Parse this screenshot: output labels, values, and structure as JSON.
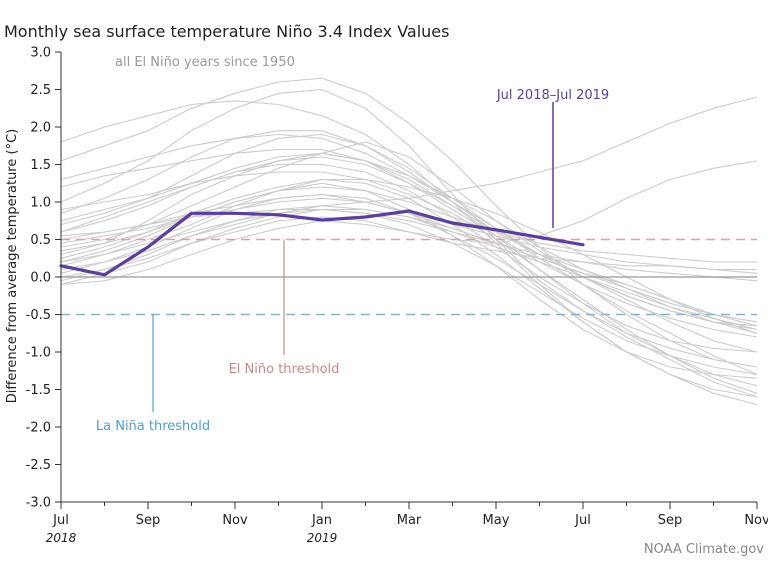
{
  "chart_data": {
    "type": "line",
    "title": "Monthly sea surface temperature Niño 3.4 Index Values",
    "subtitle": "all El Niño years since 1950",
    "ylabel": "Difference from average temperature (°C)",
    "xlabel": "",
    "ylim": [
      -3.0,
      3.0
    ],
    "yticks": [
      "3.0",
      "2.5",
      "2.0",
      "1.5",
      "1.0",
      "0.5",
      "0.0",
      "-0.5",
      "-1.0",
      "-1.5",
      "-2.0",
      "-2.5",
      "-3.0"
    ],
    "month_count": 17,
    "xtick_labels": [
      "Jul",
      "Sep",
      "Nov",
      "Jan",
      "Mar",
      "May",
      "Jul",
      "Sep",
      "Nov"
    ],
    "year_labels": [
      "2018",
      "2019"
    ],
    "highlight_series": {
      "name": "Jul 2018–Jul 2019",
      "color": "#5b3f99",
      "values": [
        0.15,
        0.03,
        0.4,
        0.85,
        0.85,
        0.83,
        0.76,
        0.8,
        0.88,
        0.72,
        0.63,
        0.53,
        0.43
      ]
    },
    "background_series": [
      [
        0.3,
        0.45,
        0.75,
        1.1,
        1.35,
        1.55,
        1.65,
        1.55,
        1.35,
        1.05,
        0.75,
        0.4,
        0.1,
        -0.15,
        -0.4,
        -0.55,
        -0.7
      ],
      [
        0.2,
        0.35,
        0.55,
        0.8,
        1.0,
        1.15,
        1.25,
        1.15,
        0.9,
        0.55,
        0.25,
        -0.1,
        -0.45,
        -0.75,
        -0.95,
        -1.1,
        -1.2
      ],
      [
        1.55,
        1.75,
        1.95,
        2.25,
        2.45,
        2.6,
        2.65,
        2.45,
        2.05,
        1.55,
        0.95,
        0.4,
        -0.1,
        -0.5,
        -0.85,
        -1.1,
        -1.2
      ],
      [
        1.0,
        1.25,
        1.55,
        1.95,
        2.25,
        2.45,
        2.5,
        2.25,
        1.75,
        1.1,
        0.5,
        -0.05,
        -0.45,
        -0.8,
        -1.1,
        -1.4,
        -1.6
      ],
      [
        0.85,
        1.05,
        1.3,
        1.6,
        1.85,
        1.95,
        1.95,
        1.75,
        1.4,
        1.0,
        0.6,
        0.3,
        0.1,
        -0.1,
        -0.3,
        -0.5,
        -0.6
      ],
      [
        1.2,
        1.35,
        1.45,
        1.55,
        1.65,
        1.7,
        1.7,
        1.55,
        1.25,
        0.9,
        0.55,
        0.2,
        -0.1,
        -0.35,
        -0.55,
        -0.7,
        -0.8
      ],
      [
        0.6,
        0.75,
        0.95,
        1.2,
        1.4,
        1.55,
        1.6,
        1.5,
        1.25,
        0.95,
        0.6,
        0.3,
        0.0,
        -0.3,
        -0.6,
        -0.85,
        -1.0
      ],
      [
        0.4,
        0.5,
        0.7,
        0.95,
        1.2,
        1.45,
        1.65,
        1.8,
        1.6,
        1.2,
        0.75,
        0.35,
        0.0,
        -0.25,
        -0.45,
        -0.6,
        -0.65
      ],
      [
        0.05,
        0.2,
        0.4,
        0.65,
        0.9,
        1.05,
        1.1,
        1.0,
        0.85,
        0.65,
        0.45,
        0.25,
        0.05,
        -0.1,
        -0.3,
        -0.5,
        -0.65
      ],
      [
        -0.05,
        0.1,
        0.3,
        0.55,
        0.75,
        0.9,
        0.95,
        0.9,
        0.8,
        0.6,
        0.4,
        0.2,
        0.0,
        -0.2,
        -0.4,
        -0.6,
        -0.75
      ],
      [
        0.1,
        0.2,
        0.35,
        0.55,
        0.7,
        0.85,
        0.95,
        1.0,
        1.05,
        1.15,
        1.25,
        1.4,
        1.55,
        1.8,
        2.05,
        2.25,
        2.4
      ],
      [
        -0.1,
        0.05,
        0.2,
        0.45,
        0.6,
        0.75,
        0.8,
        0.75,
        0.6,
        0.45,
        0.35,
        0.25,
        0.2,
        0.15,
        0.15,
        0.1,
        0.1
      ],
      [
        0.5,
        0.6,
        0.7,
        0.85,
        0.95,
        1.05,
        1.1,
        1.05,
        0.85,
        0.55,
        0.15,
        -0.3,
        -0.7,
        -1.0,
        -1.2,
        -1.3,
        -1.35
      ],
      [
        0.75,
        0.9,
        1.05,
        1.25,
        1.45,
        1.6,
        1.65,
        1.55,
        1.3,
        0.95,
        0.55,
        0.1,
        -0.35,
        -0.75,
        -1.05,
        -1.3,
        -1.45
      ],
      [
        0.2,
        0.3,
        0.45,
        0.6,
        0.75,
        0.85,
        0.9,
        0.85,
        0.7,
        0.45,
        0.15,
        -0.2,
        -0.55,
        -0.85,
        -1.05,
        -1.2,
        -1.3
      ],
      [
        0.35,
        0.45,
        0.6,
        0.8,
        1.0,
        1.15,
        1.2,
        1.15,
        1.0,
        0.8,
        0.6,
        0.45,
        0.35,
        0.3,
        0.25,
        0.2,
        0.2
      ],
      [
        0.9,
        1.0,
        1.1,
        1.25,
        1.35,
        1.4,
        1.4,
        1.3,
        1.1,
        0.85,
        0.5,
        0.1,
        -0.3,
        -0.7,
        -1.05,
        -1.35,
        -1.55
      ],
      [
        -0.1,
        -0.05,
        0.1,
        0.3,
        0.5,
        0.65,
        0.75,
        0.7,
        0.6,
        0.5,
        0.45,
        0.55,
        0.75,
        1.05,
        1.3,
        1.45,
        1.55
      ],
      [
        0.6,
        0.8,
        1.0,
        1.2,
        1.4,
        1.5,
        1.5,
        1.4,
        1.15,
        0.8,
        0.4,
        0.0,
        -0.35,
        -0.65,
        -0.85,
        -0.95,
        -1.0
      ],
      [
        1.3,
        1.45,
        1.6,
        1.75,
        1.85,
        1.9,
        1.85,
        1.65,
        1.35,
        1.0,
        0.65,
        0.3,
        0.0,
        -0.25,
        -0.45,
        -0.6,
        -0.7
      ],
      [
        0.45,
        0.55,
        0.65,
        0.8,
        0.9,
        1.0,
        1.05,
        1.0,
        0.85,
        0.7,
        0.55,
        0.4,
        0.3,
        0.2,
        0.15,
        0.1,
        0.05
      ],
      [
        0.25,
        0.4,
        0.6,
        0.85,
        1.05,
        1.2,
        1.3,
        1.3,
        1.2,
        1.05,
        0.85,
        0.6,
        0.3,
        0.0,
        -0.3,
        -0.55,
        -0.75
      ],
      [
        0.7,
        0.85,
        1.05,
        1.35,
        1.65,
        1.85,
        1.9,
        1.75,
        1.45,
        1.05,
        0.65,
        0.25,
        -0.1,
        -0.45,
        -0.75,
        -1.05,
        -1.3
      ],
      [
        0.55,
        0.6,
        0.7,
        0.8,
        0.85,
        0.9,
        0.9,
        0.85,
        0.75,
        0.6,
        0.45,
        0.3,
        0.2,
        0.1,
        0.05,
        0.0,
        -0.05
      ],
      [
        0.0,
        0.1,
        0.25,
        0.45,
        0.65,
        0.8,
        0.9,
        0.9,
        0.8,
        0.65,
        0.45,
        0.25,
        0.05,
        -0.15,
        -0.35,
        -0.5,
        -0.6
      ],
      [
        1.8,
        2.0,
        2.15,
        2.3,
        2.35,
        2.3,
        2.15,
        1.9,
        1.5,
        1.0,
        0.45,
        -0.1,
        -0.6,
        -1.0,
        -1.3,
        -1.5,
        -1.6
      ],
      [
        0.15,
        0.3,
        0.5,
        0.7,
        0.95,
        1.15,
        1.3,
        1.25,
        1.05,
        0.7,
        0.3,
        -0.15,
        -0.6,
        -1.0,
        -1.3,
        -1.55,
        -1.7
      ]
    ],
    "thresholds": [
      {
        "name": "El Niño threshold",
        "value": 0.5,
        "color": "#d9a3a3"
      },
      {
        "name": "La Niña threshold",
        "value": -0.5,
        "color": "#7fb6d8"
      }
    ],
    "zero_line_color": "#999999",
    "background_line_color": "#cccccc"
  },
  "annotations": {
    "el_nino_label": "El Niño threshold",
    "la_nina_label": "La Niña threshold",
    "highlight_label": "Jul 2018–Jul 2019",
    "highlight_color": "#5b3f99",
    "el_nino_color": "#c78a8a",
    "la_nina_color": "#4f9fce"
  },
  "credit": "NOAA Climate.gov"
}
